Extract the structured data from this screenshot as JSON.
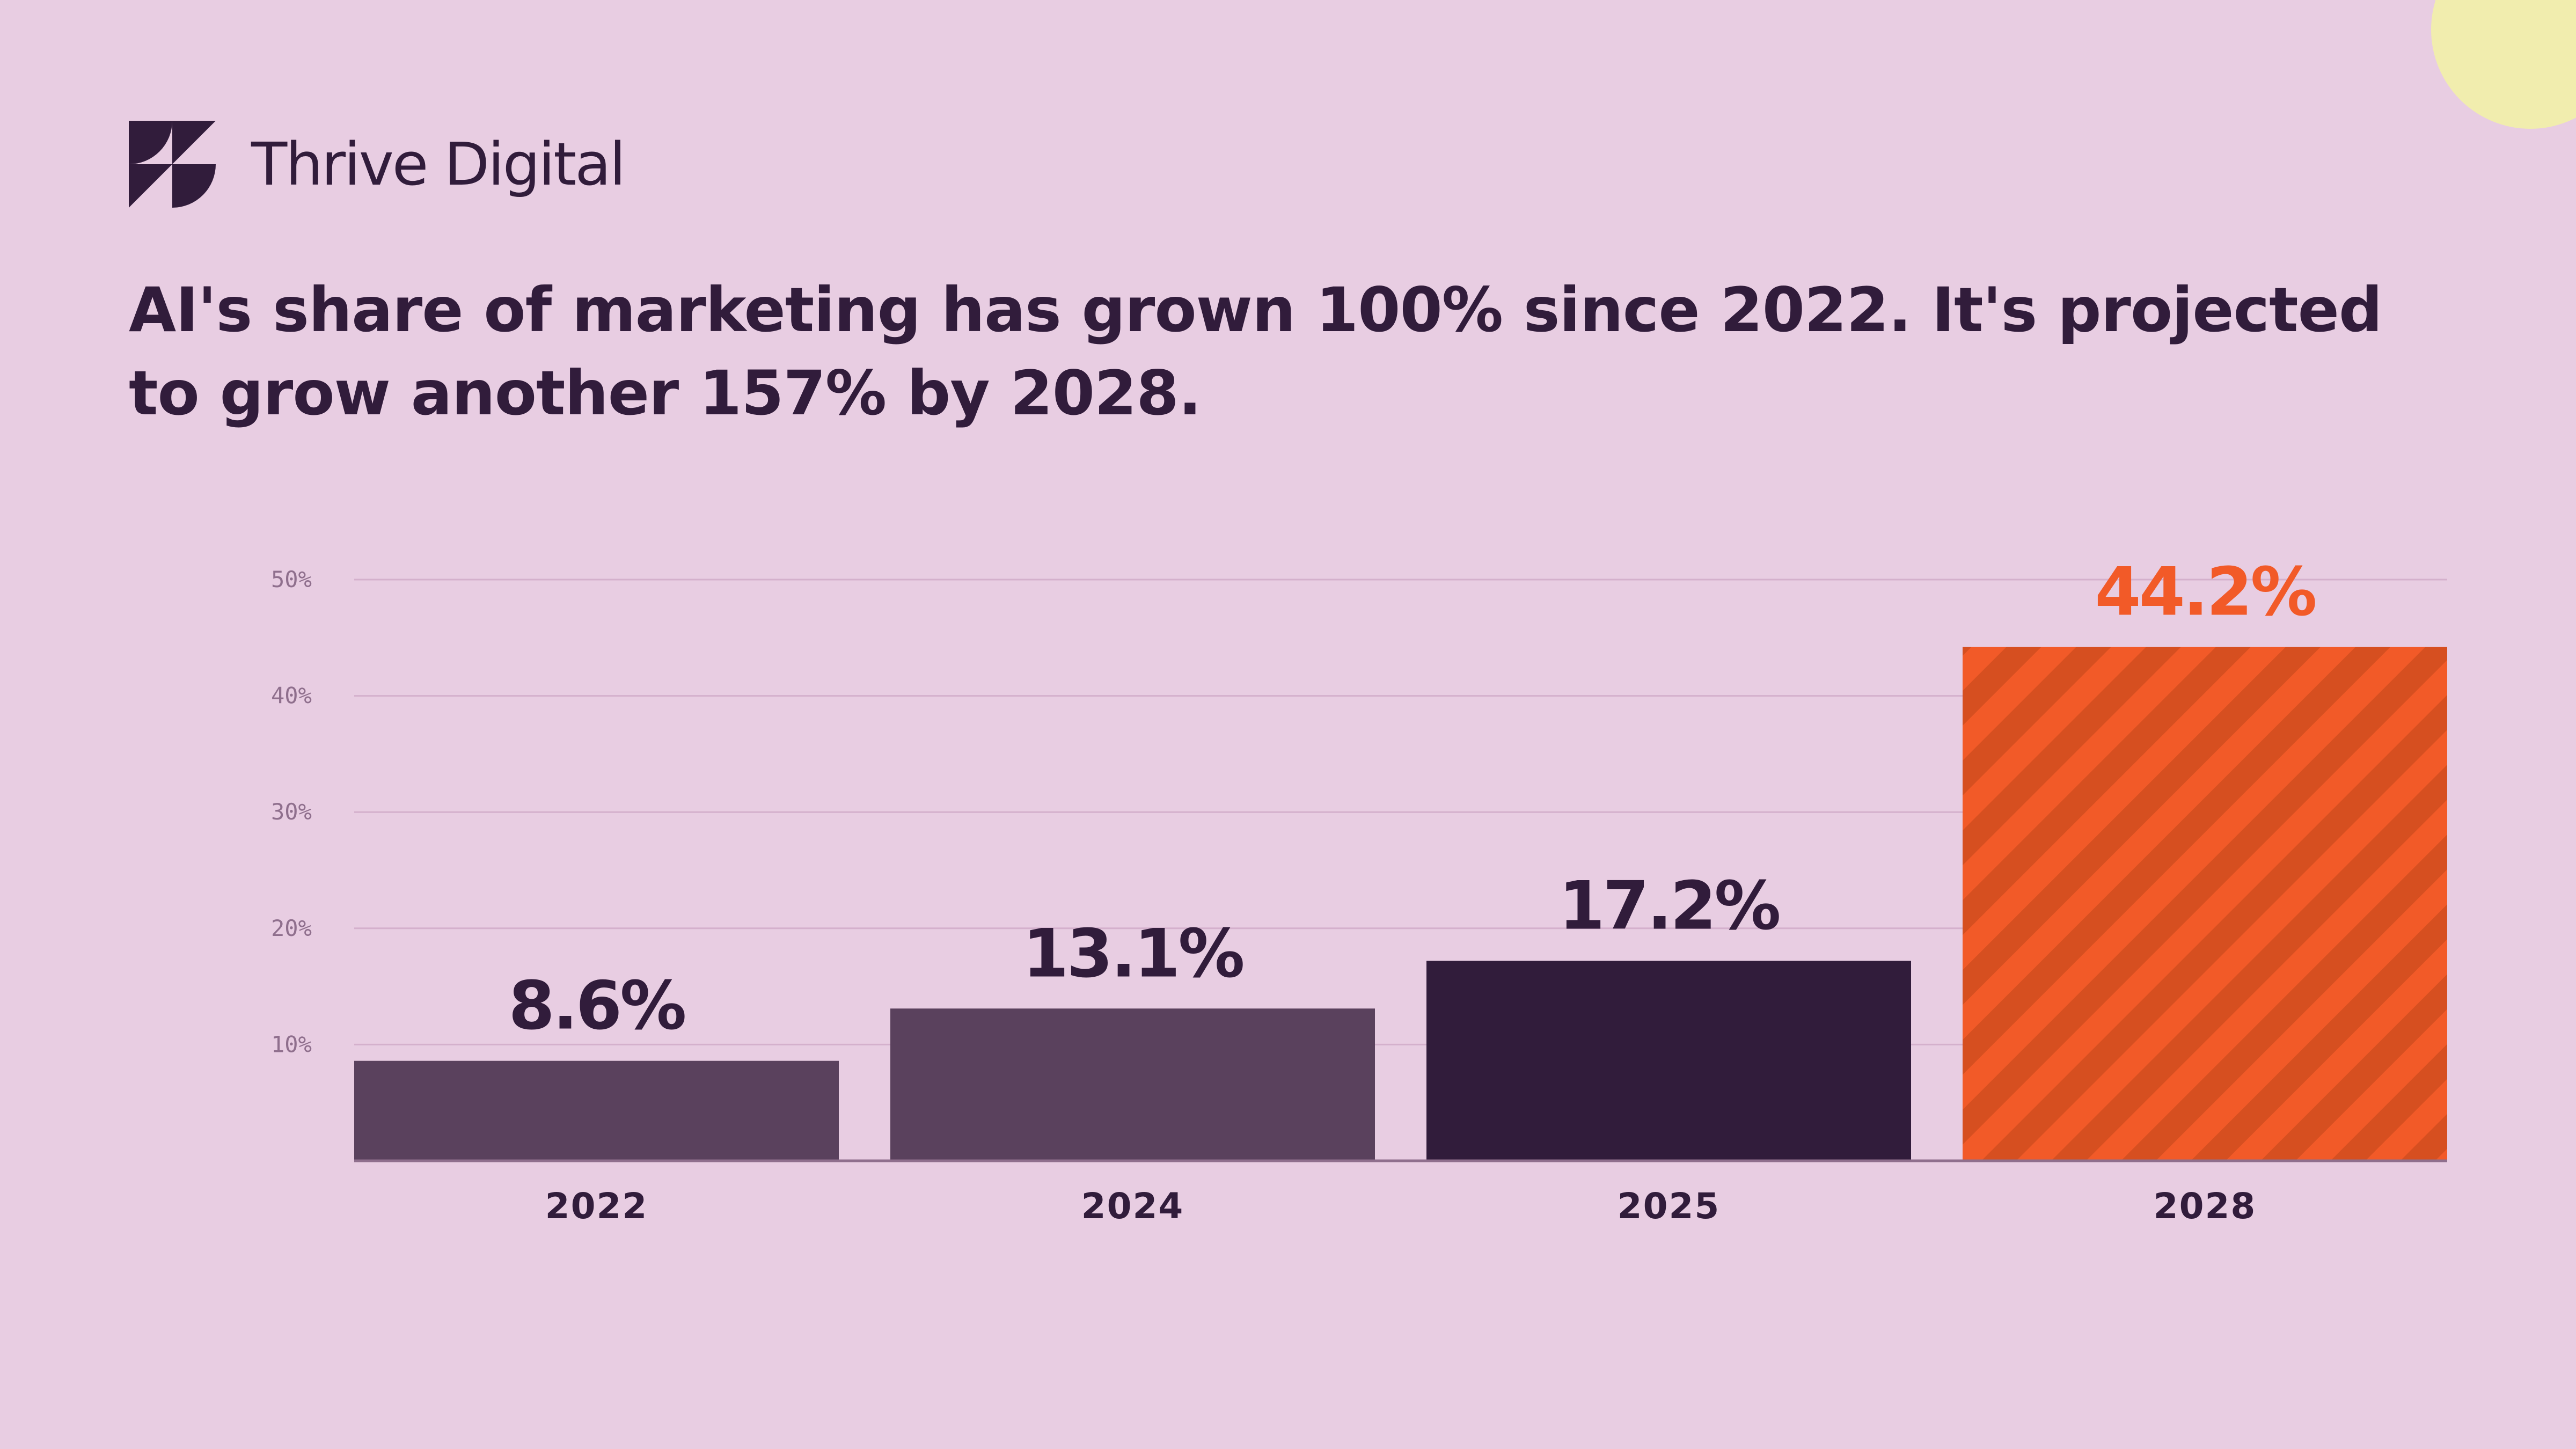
{
  "brand": {
    "name": "Thrive Digital"
  },
  "headline": "AI's share of marketing has grown 100% since 2022. It's projected to grow another 157% by 2028.",
  "colors": {
    "background": "#E8CDE2",
    "text": "#311C3B",
    "bar_muted": "#5A415D",
    "bar_dark": "#311C3B",
    "bar_highlight": "#F25A28",
    "bar_highlight_stripe": "#D64F20",
    "highlight_label": "#F25A28",
    "gridline": "#D4B0CC",
    "tick_text": "#8F6F8D",
    "corner_circle": "#F1EDAE"
  },
  "chart_data": {
    "type": "bar",
    "categories": [
      "2022",
      "2024",
      "2025",
      "2028"
    ],
    "values": [
      8.6,
      13.1,
      17.2,
      44.2
    ],
    "value_labels": [
      "8.6%",
      "13.1%",
      "17.2%",
      "44.2%"
    ],
    "ylim": [
      0,
      50
    ],
    "yticks": [
      10,
      20,
      30,
      40,
      50
    ],
    "ytick_labels": [
      "10%",
      "20%",
      "30%",
      "40%",
      "50%"
    ],
    "grid": true,
    "bar_styles": [
      "muted",
      "muted",
      "dark",
      "highlight-striped"
    ]
  }
}
